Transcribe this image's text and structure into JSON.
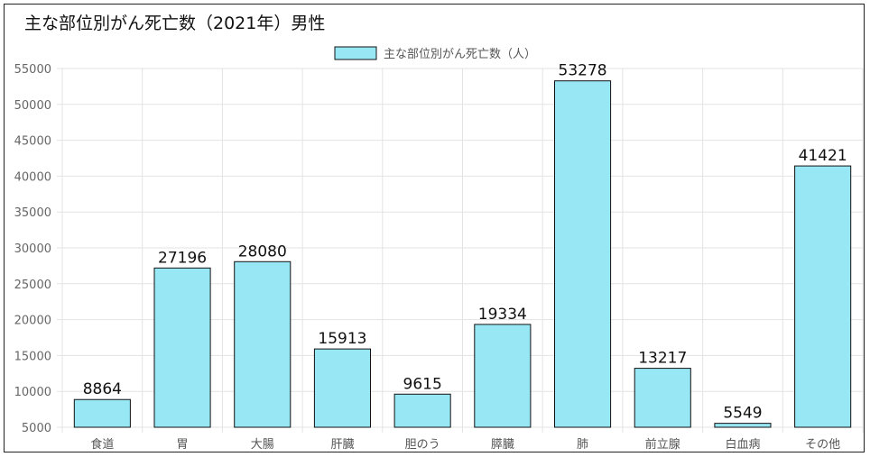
{
  "chart_data": {
    "type": "bar",
    "title": "主な部位別がん死亡数（2021年）男性",
    "categories": [
      "食道",
      "胃",
      "大腸",
      "肝臓",
      "胆のう",
      "膵臓",
      "肺",
      "前立腺",
      "白血病",
      "その他"
    ],
    "series": [
      {
        "name": "主な部位別がん死亡数（人）",
        "values": [
          8864,
          27196,
          28080,
          15913,
          9615,
          19334,
          53278,
          13217,
          5549,
          41421
        ],
        "color": "#97e7f5",
        "border_color": "#111111"
      }
    ],
    "ylim": [
      5000,
      55000
    ],
    "yticks": [
      5000,
      10000,
      15000,
      20000,
      25000,
      30000,
      35000,
      40000,
      45000,
      50000,
      55000
    ],
    "legend_position": "top-center",
    "grid": true,
    "data_labels": true
  }
}
